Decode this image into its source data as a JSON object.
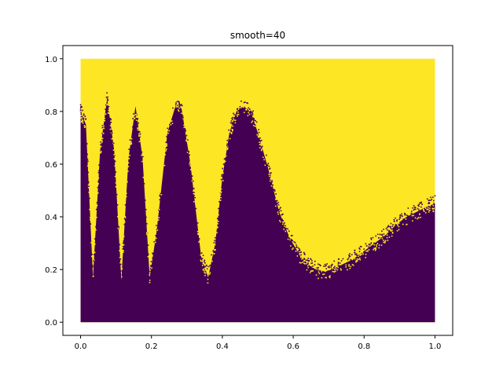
{
  "chart_data": {
    "type": "scatter",
    "title": "smooth=40",
    "xlabel": "",
    "ylabel": "",
    "xlim": [
      -0.05,
      1.05
    ],
    "ylim": [
      -0.05,
      1.05
    ],
    "xticks": [
      0.0,
      0.2,
      0.4,
      0.6,
      0.8,
      1.0
    ],
    "xtick_labels": [
      "0.0",
      "0.2",
      "0.4",
      "0.6",
      "0.8",
      "1.0"
    ],
    "yticks": [
      0.0,
      0.2,
      0.4,
      0.6,
      0.8,
      1.0
    ],
    "ytick_labels": [
      "0.0",
      "0.2",
      "0.4",
      "0.6",
      "0.8",
      "1.0"
    ],
    "grid": false,
    "legend": false,
    "point_domain": {
      "x": [
        0,
        1
      ],
      "y": [
        0,
        1
      ]
    },
    "series": [
      {
        "class": 1,
        "color": "#fde725",
        "region": "above boundary"
      },
      {
        "class": 0,
        "color": "#440154",
        "region": "below boundary"
      }
    ],
    "boundary": {
      "x": [
        0.0,
        0.015,
        0.035,
        0.055,
        0.075,
        0.095,
        0.115,
        0.135,
        0.155,
        0.175,
        0.195,
        0.215,
        0.245,
        0.27,
        0.285,
        0.31,
        0.34,
        0.36,
        0.38,
        0.4,
        0.42,
        0.44,
        0.46,
        0.48,
        0.5,
        0.53,
        0.56,
        0.59,
        0.62,
        0.65,
        0.68,
        0.71,
        0.74,
        0.77,
        0.8,
        0.83,
        0.86,
        0.89,
        0.92,
        0.95,
        0.98,
        1.0
      ],
      "y": [
        0.8,
        0.75,
        0.17,
        0.65,
        0.85,
        0.65,
        0.16,
        0.62,
        0.82,
        0.62,
        0.17,
        0.35,
        0.72,
        0.83,
        0.81,
        0.6,
        0.25,
        0.17,
        0.3,
        0.55,
        0.72,
        0.8,
        0.82,
        0.8,
        0.72,
        0.58,
        0.42,
        0.32,
        0.25,
        0.21,
        0.19,
        0.2,
        0.22,
        0.24,
        0.27,
        0.3,
        0.33,
        0.37,
        0.4,
        0.42,
        0.44,
        0.45
      ]
    }
  }
}
